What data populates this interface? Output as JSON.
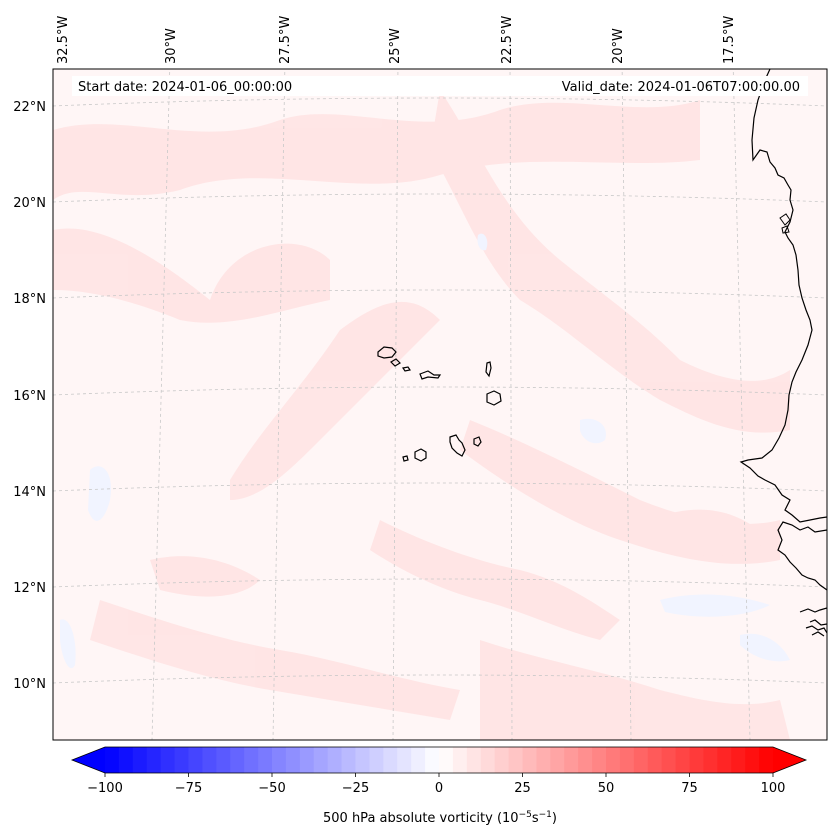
{
  "header": {
    "start_date": "Start date: 2024-01-06_00:00:00",
    "valid_date": "Valid_date: 2024-01-06T07:00:00.00"
  },
  "longitude_labels": [
    "32.5°W",
    "30°W",
    "27.5°W",
    "25°W",
    "22.5°W",
    "20°W",
    "17.5°W"
  ],
  "latitude_labels": [
    "22°N",
    "20°N",
    "18°N",
    "16°N",
    "14°N",
    "12°N",
    "10°N"
  ],
  "map": {
    "variable": "500 hPa absolute vorticity",
    "region": "Cape Verde / West Africa coast",
    "features": [
      "Cape Verde islands",
      "West African coastline"
    ]
  },
  "colorbar": {
    "min": -100,
    "max": 100,
    "tick_values": [
      -100,
      -75,
      -50,
      -25,
      0,
      25,
      50,
      75,
      100
    ],
    "tick_labels": [
      "−100",
      "−75",
      "−50",
      "−25",
      "0",
      "25",
      "50",
      "75",
      "100"
    ],
    "label": "500 hPa absolute vorticity (10",
    "label_exp1": "−5",
    "label_mid": "s",
    "label_exp2": "−1",
    "label_end": ")",
    "low_color": "#0000ff",
    "mid_color": "#ffffff",
    "high_color": "#ff0000"
  },
  "colors": {
    "land_outline": "#000000",
    "gridline": "#c8c8c8",
    "field_base": "#fff6f6",
    "field_pos": "#ffe4e4",
    "field_neg": "#f3f5ff"
  }
}
